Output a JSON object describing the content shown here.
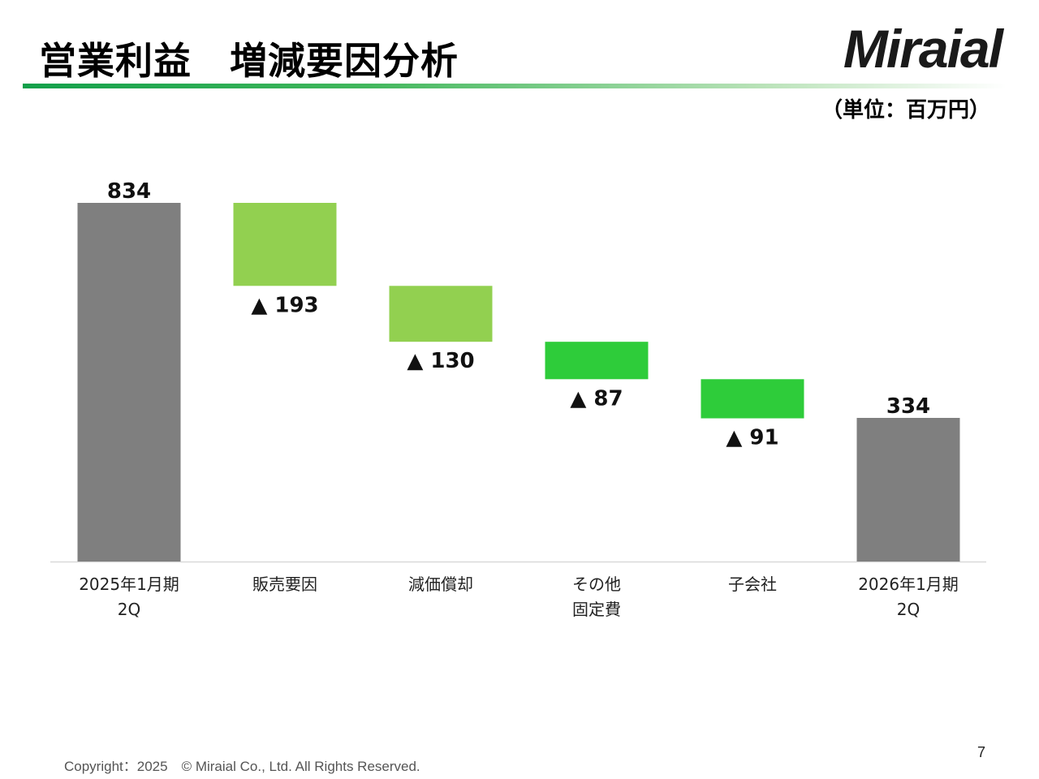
{
  "slide": {
    "title": "営業利益　増減要因分析",
    "logo_text": "Miraial",
    "unit_label": "（単位：百万円）",
    "copyright": "Copyright：2025　© Miraial Co., Ltd. All Rights Reserved.",
    "page_number": "7"
  },
  "colors": {
    "total_bar": "#7f7f7f",
    "decrease_light": "#92d050",
    "decrease_bright": "#2ecc3a",
    "axis": "#d9d9d9"
  },
  "chart_data": {
    "type": "bar",
    "subtype": "waterfall",
    "categories": [
      [
        "2025年1月期",
        "2Q"
      ],
      [
        "販売要因"
      ],
      [
        "減価償却"
      ],
      [
        "その他",
        "固定費"
      ],
      [
        "子会社"
      ],
      [
        "2026年1月期",
        "2Q"
      ]
    ],
    "steps": [
      {
        "kind": "total",
        "value": 834,
        "label": "834",
        "color_key": "total_bar"
      },
      {
        "kind": "delta",
        "value": -193,
        "label": "▲ 193",
        "color_key": "decrease_light"
      },
      {
        "kind": "delta",
        "value": -130,
        "label": "▲ 130",
        "color_key": "decrease_light"
      },
      {
        "kind": "delta",
        "value": -87,
        "label": "▲ 87",
        "color_key": "decrease_bright"
      },
      {
        "kind": "delta",
        "value": -91,
        "label": "▲ 91",
        "color_key": "decrease_bright"
      },
      {
        "kind": "total",
        "value": 334,
        "label": "334",
        "color_key": "total_bar"
      }
    ],
    "ylim": [
      0,
      834
    ],
    "grid": false,
    "legend": "none"
  }
}
